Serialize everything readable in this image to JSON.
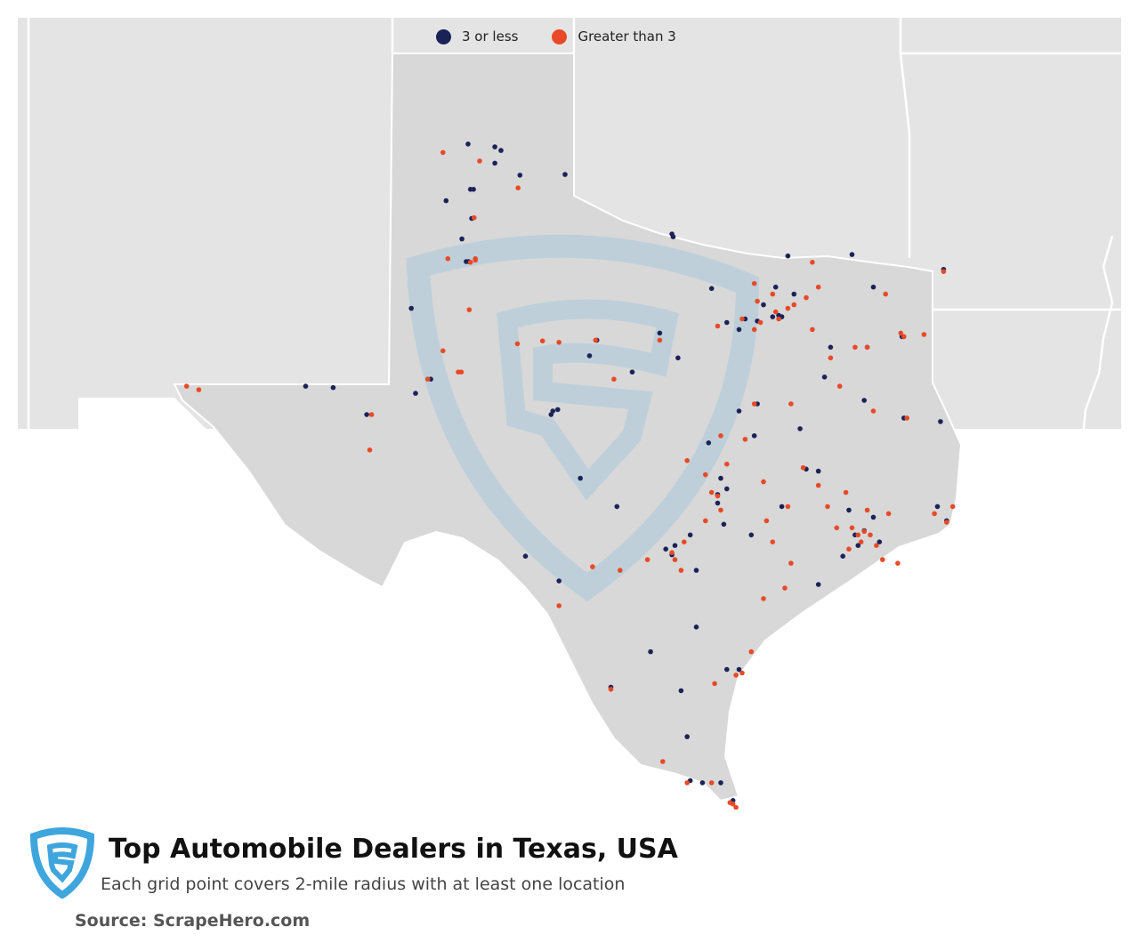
{
  "colors": {
    "low": "#1b2258",
    "high": "#e84a27",
    "land_outside": "#e4e4e4",
    "land_texas": "#d8d8d8",
    "borders": "#ffffff",
    "watermark": "#b7d1df",
    "logo": "#3fa6dd"
  },
  "legend": [
    {
      "label": "3 or less",
      "color_key": "low"
    },
    {
      "label": "Greater than 3",
      "color_key": "high"
    }
  ],
  "footer": {
    "title": "Top Automobile Dealers in Texas, USA",
    "subtitle": "Each grid point covers 2-mile radius with at least one location",
    "source": "Source: ScrapeHero.com",
    "logo_icon": "scrapehero-shield-icon"
  },
  "chart_data": {
    "type": "scatter",
    "title": "Top Automobile Dealers in Texas, USA",
    "series": [
      {
        "name": "3 or less",
        "color_key": "low",
        "points": [
          [
            -101.84,
            35.22
          ],
          [
            -101.4,
            35.18
          ],
          [
            -101.3,
            35.13
          ],
          [
            -101.4,
            34.95
          ],
          [
            -101.75,
            34.58
          ],
          [
            -101.8,
            34.58
          ],
          [
            -102.2,
            34.42
          ],
          [
            -101.78,
            34.17
          ],
          [
            -100.25,
            34.79
          ],
          [
            -100.99,
            34.78
          ],
          [
            -101.94,
            33.88
          ],
          [
            -101.87,
            33.56
          ],
          [
            -101.83,
            33.56
          ],
          [
            -102.77,
            32.9
          ],
          [
            -102.45,
            31.9
          ],
          [
            -102.7,
            31.7
          ],
          [
            -104.05,
            31.78
          ],
          [
            -104.5,
            31.8
          ],
          [
            -103.5,
            31.4
          ],
          [
            -100.37,
            31.47
          ],
          [
            -100.45,
            31.45
          ],
          [
            -99.73,
            32.45
          ],
          [
            -99.85,
            32.23
          ],
          [
            -98.48,
            33.91
          ],
          [
            -98.5,
            33.95
          ],
          [
            -97.85,
            33.18
          ],
          [
            -96.6,
            33.64
          ],
          [
            -96.8,
            33.2
          ],
          [
            -96.75,
            32.8
          ],
          [
            -96.7,
            32.78
          ],
          [
            -96.85,
            32.78
          ],
          [
            -97.3,
            32.75
          ],
          [
            -97.1,
            32.72
          ],
          [
            -97.4,
            32.6
          ],
          [
            -97.0,
            32.95
          ],
          [
            -96.5,
            33.1
          ],
          [
            -95.55,
            33.66
          ],
          [
            -95.2,
            33.2
          ],
          [
            -94.73,
            32.5
          ],
          [
            -94.05,
            33.45
          ],
          [
            -95.3,
            32.35
          ],
          [
            -95.9,
            32.35
          ],
          [
            -96.0,
            31.93
          ],
          [
            -95.35,
            31.6
          ],
          [
            -94.7,
            31.35
          ],
          [
            -94.1,
            31.3
          ],
          [
            -96.4,
            31.2
          ],
          [
            -97.1,
            31.55
          ],
          [
            -97.15,
            31.1
          ],
          [
            -97.4,
            31.45
          ],
          [
            -97.75,
            30.27
          ],
          [
            -97.7,
            30.5
          ],
          [
            -97.75,
            30.15
          ],
          [
            -97.6,
            30.35
          ],
          [
            -97.65,
            29.85
          ],
          [
            -98.5,
            29.42
          ],
          [
            -98.6,
            29.5
          ],
          [
            -98.45,
            29.55
          ],
          [
            -98.2,
            29.7
          ],
          [
            -98.1,
            29.2
          ],
          [
            -95.35,
            29.76
          ],
          [
            -95.5,
            29.7
          ],
          [
            -95.2,
            29.95
          ],
          [
            -95.1,
            29.6
          ],
          [
            -95.45,
            29.55
          ],
          [
            -95.6,
            30.05
          ],
          [
            -95.7,
            29.4
          ],
          [
            -96.1,
            29.0
          ],
          [
            -96.7,
            30.1
          ],
          [
            -96.1,
            30.6
          ],
          [
            -96.3,
            30.63
          ],
          [
            -94.15,
            30.1
          ],
          [
            -94.0,
            29.9
          ],
          [
            -97.4,
            27.8
          ],
          [
            -97.6,
            27.8
          ],
          [
            -98.35,
            27.5
          ],
          [
            -98.0,
            26.2
          ],
          [
            -97.5,
            25.95
          ],
          [
            -97.7,
            26.2
          ],
          [
            -98.2,
            26.23
          ],
          [
            -99.5,
            27.55
          ],
          [
            -98.25,
            26.85
          ],
          [
            -98.1,
            28.4
          ],
          [
            -98.85,
            28.05
          ],
          [
            -99.4,
            30.1
          ],
          [
            -100.35,
            29.05
          ],
          [
            -100.9,
            29.4
          ],
          [
            -100.0,
            30.5
          ],
          [
            -100.48,
            31.4
          ],
          [
            -99.15,
            32.0
          ],
          [
            -98.4,
            32.2
          ],
          [
            -98.7,
            32.55
          ],
          [
            -97.6,
            32.7
          ],
          [
            -97.9,
            31.0
          ],
          [
            -97.2,
            29.7
          ]
        ]
      },
      {
        "name": "Greater than 3",
        "color_key": "high",
        "points": [
          [
            -102.25,
            35.1
          ],
          [
            -101.65,
            34.98
          ],
          [
            -101.02,
            34.6
          ],
          [
            -101.74,
            34.18
          ],
          [
            -101.72,
            33.58
          ],
          [
            -101.8,
            33.55
          ],
          [
            -102.17,
            33.6
          ],
          [
            -101.72,
            33.6
          ],
          [
            -101.82,
            32.88
          ],
          [
            -102.25,
            32.3
          ],
          [
            -102.0,
            32.0
          ],
          [
            -101.95,
            32.0
          ],
          [
            -102.5,
            31.9
          ],
          [
            -103.42,
            31.4
          ],
          [
            -103.45,
            30.9
          ],
          [
            -106.25,
            31.75
          ],
          [
            -106.45,
            31.8
          ],
          [
            -101.03,
            32.4
          ],
          [
            -100.62,
            32.44
          ],
          [
            -100.35,
            32.42
          ],
          [
            -99.75,
            32.45
          ],
          [
            -99.45,
            31.9
          ],
          [
            -98.7,
            32.45
          ],
          [
            -97.75,
            32.65
          ],
          [
            -97.35,
            32.75
          ],
          [
            -97.05,
            32.7
          ],
          [
            -96.8,
            32.85
          ],
          [
            -96.75,
            32.75
          ],
          [
            -96.6,
            32.9
          ],
          [
            -96.5,
            32.95
          ],
          [
            -96.3,
            33.05
          ],
          [
            -96.1,
            33.2
          ],
          [
            -96.85,
            33.1
          ],
          [
            -97.1,
            33.0
          ],
          [
            -97.15,
            32.6
          ],
          [
            -96.2,
            32.6
          ],
          [
            -95.3,
            32.35
          ],
          [
            -95.9,
            32.2
          ],
          [
            -95.5,
            32.35
          ],
          [
            -94.75,
            32.55
          ],
          [
            -94.7,
            32.5
          ],
          [
            -94.37,
            32.53
          ],
          [
            -94.05,
            33.42
          ],
          [
            -95.0,
            33.1
          ],
          [
            -96.2,
            33.55
          ],
          [
            -97.15,
            33.25
          ],
          [
            -95.75,
            31.8
          ],
          [
            -95.2,
            31.45
          ],
          [
            -94.65,
            31.35
          ],
          [
            -96.55,
            31.55
          ],
          [
            -97.15,
            31.55
          ],
          [
            -97.7,
            31.1
          ],
          [
            -97.6,
            30.7
          ],
          [
            -97.75,
            30.25
          ],
          [
            -97.85,
            30.3
          ],
          [
            -97.7,
            30.05
          ],
          [
            -97.95,
            29.9
          ],
          [
            -98.5,
            29.45
          ],
          [
            -98.45,
            29.35
          ],
          [
            -98.3,
            29.6
          ],
          [
            -98.35,
            29.2
          ],
          [
            -98.9,
            29.35
          ],
          [
            -99.35,
            29.2
          ],
          [
            -99.8,
            29.25
          ],
          [
            -100.35,
            28.7
          ],
          [
            -99.5,
            27.52
          ],
          [
            -98.65,
            26.5
          ],
          [
            -97.5,
            25.9
          ],
          [
            -97.55,
            25.92
          ],
          [
            -97.45,
            25.85
          ],
          [
            -98.25,
            26.2
          ],
          [
            -97.85,
            26.2
          ],
          [
            -97.35,
            27.75
          ],
          [
            -97.45,
            27.72
          ],
          [
            -97.8,
            27.6
          ],
          [
            -97.2,
            28.05
          ],
          [
            -97.0,
            28.8
          ],
          [
            -96.65,
            28.95
          ],
          [
            -96.55,
            29.3
          ],
          [
            -95.35,
            29.75
          ],
          [
            -95.45,
            29.7
          ],
          [
            -95.25,
            29.7
          ],
          [
            -95.55,
            29.8
          ],
          [
            -95.4,
            29.6
          ],
          [
            -95.15,
            29.55
          ],
          [
            -95.05,
            29.35
          ],
          [
            -94.8,
            29.3
          ],
          [
            -95.6,
            29.5
          ],
          [
            -95.8,
            29.8
          ],
          [
            -95.95,
            30.1
          ],
          [
            -95.65,
            30.3
          ],
          [
            -95.3,
            30.05
          ],
          [
            -94.95,
            30.0
          ],
          [
            -94.2,
            30.0
          ],
          [
            -94.0,
            29.88
          ],
          [
            -93.9,
            30.1
          ],
          [
            -96.35,
            30.65
          ],
          [
            -96.6,
            30.1
          ],
          [
            -96.1,
            30.4
          ],
          [
            -96.85,
            29.6
          ],
          [
            -97.0,
            30.45
          ],
          [
            -98.25,
            30.75
          ],
          [
            -97.95,
            30.55
          ],
          [
            -97.3,
            31.05
          ],
          [
            -96.95,
            29.9
          ]
        ]
      }
    ]
  }
}
